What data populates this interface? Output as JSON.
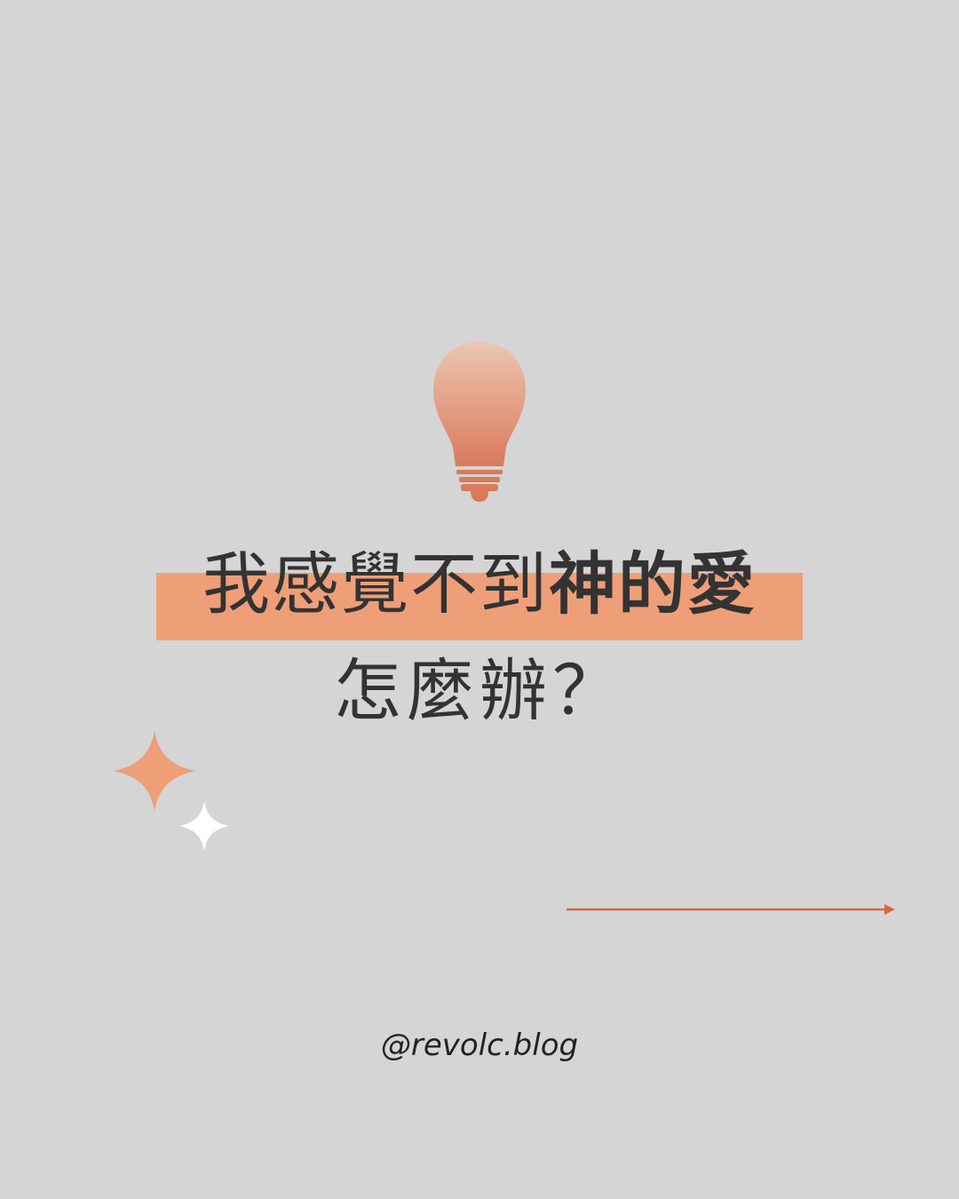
{
  "title": {
    "line1_part1": "我感覺不到",
    "line1_part2": "神的愛",
    "line2": "怎麼辦？"
  },
  "footer": {
    "handle": "@revolc.blog"
  },
  "colors": {
    "background": "#d5d5d5",
    "accent": "#ee9f78",
    "bulb_top": "#edc4ae",
    "bulb_bottom": "#d9785a",
    "arrow": "#d9673f",
    "text": "#333333",
    "sparkle_white": "#ffffff"
  },
  "icons": {
    "bulb": "lightbulb-icon",
    "sparkle_large": "sparkle-icon",
    "sparkle_small": "sparkle-icon",
    "arrow": "arrow-right-icon"
  }
}
